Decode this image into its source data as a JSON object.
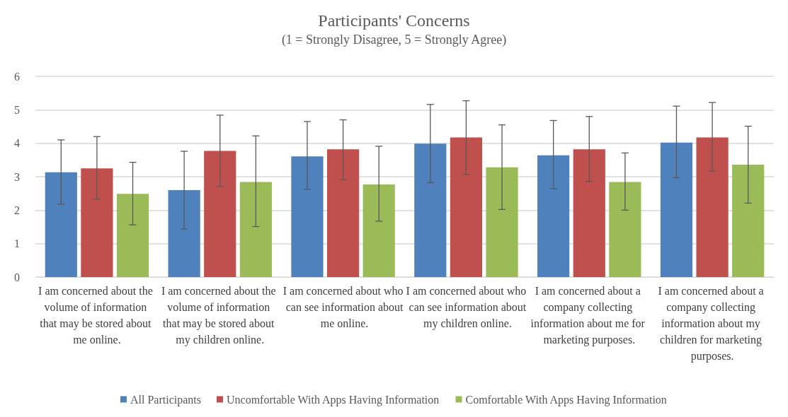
{
  "chart_data": {
    "type": "bar",
    "title": "Participants' Concerns",
    "subtitle": "(1 = Strongly Disagree, 5 = Strongly Agree)",
    "categories": [
      "I am concerned about the volume of information that may be stored about me online.",
      "I am concerned about the volume of information that may be stored about my children online.",
      "I am concerned about who can see information about me online.",
      "I am concerned about who can see information about my children online.",
      "I am concerned about a company collecting information about me for marketing purposes.",
      "I am concerned about a company collecting information about my children for marketing purposes."
    ],
    "series": [
      {
        "name": "All Participants",
        "color": "#4f81bd",
        "values": [
          3.13,
          2.6,
          3.61,
          3.99,
          3.64,
          4.02
        ],
        "errors": [
          [
            2.18,
            4.1
          ],
          [
            1.44,
            3.76
          ],
          [
            2.62,
            4.65
          ],
          [
            2.82,
            5.16
          ],
          [
            2.64,
            4.68
          ],
          [
            2.97,
            5.11
          ]
        ]
      },
      {
        "name": "Uncomfortable With Apps Having Information",
        "color": "#c0504d",
        "values": [
          3.25,
          3.77,
          3.82,
          4.17,
          3.82,
          4.17
        ],
        "errors": [
          [
            2.33,
            4.2
          ],
          [
            2.71,
            4.84
          ],
          [
            2.91,
            4.7
          ],
          [
            3.07,
            5.27
          ],
          [
            2.86,
            4.8
          ],
          [
            3.17,
            5.22
          ]
        ]
      },
      {
        "name": "Comfortable With Apps Having Information",
        "color": "#9bbb59",
        "values": [
          2.49,
          2.84,
          2.77,
          3.28,
          2.84,
          3.36
        ],
        "errors": [
          [
            1.56,
            3.43
          ],
          [
            1.51,
            4.22
          ],
          [
            1.67,
            3.91
          ],
          [
            2.02,
            4.55
          ],
          [
            2.0,
            3.71
          ],
          [
            2.21,
            4.51
          ]
        ]
      }
    ],
    "ylim": [
      0,
      6
    ],
    "yticks": [
      0,
      1,
      2,
      3,
      4,
      5,
      6
    ],
    "grid": "y",
    "legend": "bottom"
  }
}
